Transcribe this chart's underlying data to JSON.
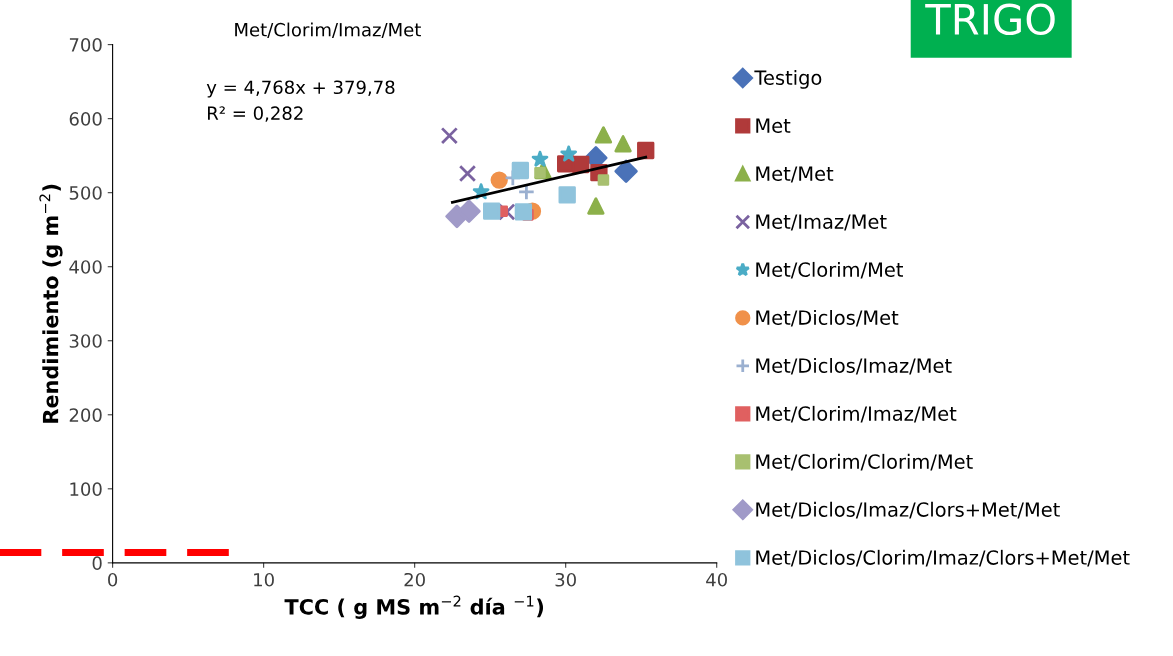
{
  "chart_data": {
    "type": "scatter",
    "title": "Met/Clorim/Imaz/Met",
    "xlabel": "TCC ( g MS m$^{−2}$ día $^{−1}$)",
    "ylabel": "Rendimiento (g m$^{−2}$)",
    "xlim": [
      0,
      40
    ],
    "xticks": [
      0,
      10,
      20,
      30,
      40
    ],
    "ylim": [
      0,
      700
    ],
    "yticks": [
      0,
      100,
      200,
      300,
      400,
      500,
      600,
      700
    ],
    "grid": false,
    "legend": "right",
    "annotations": [
      "y = 4,768x + 379,78",
      "R² = 0,282",
      "TRIGO"
    ],
    "ref_lines": [
      {
        "axis": "y",
        "value": 14,
        "color": "#ff0000",
        "line_style": "dashed"
      }
    ],
    "series": [
      {
        "name": "Testigo",
        "color": "#4a72b8",
        "marker": "diamond",
        "x": [
          32.0,
          34.0
        ],
        "values": [
          547,
          529
        ]
      },
      {
        "name": "Met",
        "color": "#b03a3a",
        "marker": "square",
        "x": [
          30.0,
          31.0,
          32.2,
          35.3
        ],
        "values": [
          539,
          538,
          527,
          557
        ]
      },
      {
        "name": "Met/Met",
        "color": "#8cb04a",
        "marker": "triangle",
        "x": [
          32.5,
          33.8,
          32.0,
          28.5
        ],
        "values": [
          578,
          566,
          482,
          530
        ]
      },
      {
        "name": "Met/Imaz/Met",
        "color": "#7a62a0",
        "marker": "cross",
        "x": [
          22.3,
          23.5,
          26.1
        ],
        "values": [
          577,
          526,
          474
        ]
      },
      {
        "name": "Met/Clorim/Met",
        "color": "#4bacc6",
        "marker": "star",
        "x": [
          30.2,
          28.3,
          24.4
        ],
        "values": [
          552,
          545,
          501
        ]
      },
      {
        "name": "Met/Diclos/Met",
        "color": "#f0914a",
        "marker": "circle",
        "x": [
          25.6,
          27.8
        ],
        "values": [
          517,
          475
        ]
      },
      {
        "name": "Met/Diclos/Imaz/Met",
        "color": "#9bb0d0",
        "marker": "plus",
        "x": [
          27.4,
          26.5
        ],
        "values": [
          501,
          520
        ]
      },
      {
        "name": "Met/Clorim/Imaz/Met",
        "color": "#e06060",
        "marker": "square",
        "x": [
          25.8,
          27.5
        ],
        "values": [
          475,
          470
        ]
      },
      {
        "name": "Met/Clorim/Clorim/Met",
        "color": "#a8c070",
        "marker": "square",
        "x": [
          32.5,
          28.3
        ],
        "values": [
          517,
          527
        ]
      },
      {
        "name": "Met/Diclos/Imaz/Clors+Met/Met",
        "color": "#a09ac8",
        "marker": "diamond",
        "x": [
          22.8,
          23.6
        ],
        "values": [
          468,
          475
        ]
      },
      {
        "name": "Met/Diclos/Clorim/Imaz/Clors+Met/Met",
        "color": "#8fc3dc",
        "marker": "square",
        "x": [
          27.0,
          30.1,
          25.1,
          27.2
        ],
        "values": [
          530,
          497,
          475,
          474
        ]
      },
      {
        "type": "line",
        "color": "#000000",
        "marker": "none",
        "x": [
          22.5,
          35.3
        ],
        "values": [
          487,
          548
        ]
      }
    ]
  }
}
